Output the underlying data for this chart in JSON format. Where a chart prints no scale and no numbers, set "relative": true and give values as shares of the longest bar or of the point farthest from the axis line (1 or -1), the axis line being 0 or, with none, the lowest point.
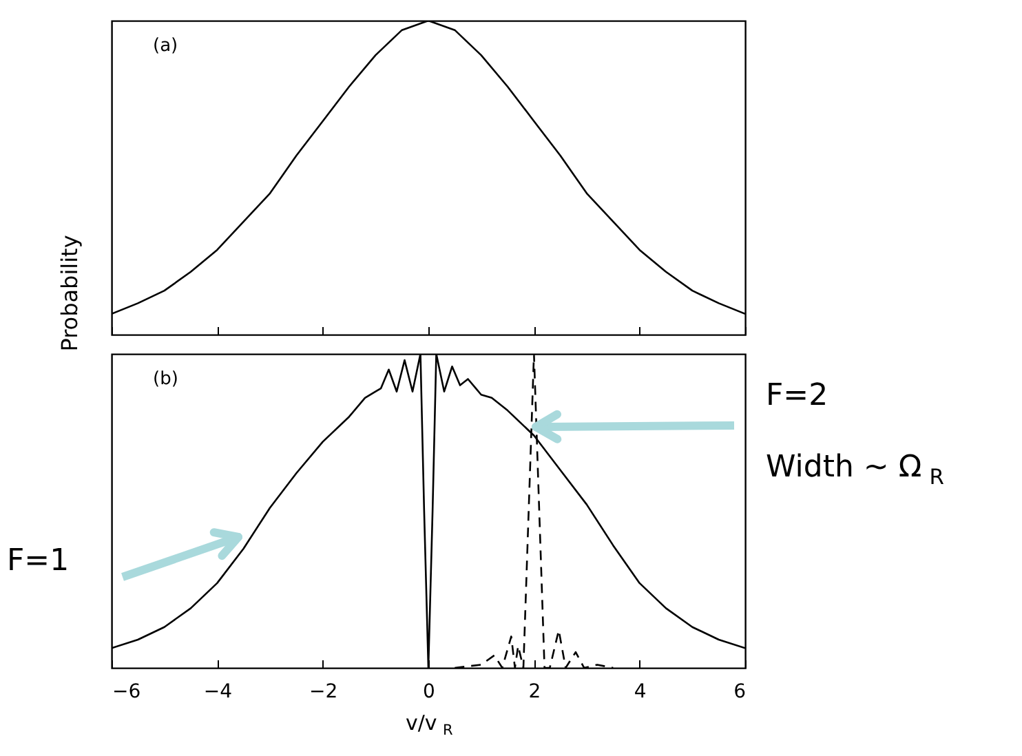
{
  "chart_data": [
    {
      "type": "line",
      "relative": true,
      "ylabel": "Probability",
      "xlim": [
        -6,
        6
      ],
      "xticks": [
        -6,
        -4,
        -2,
        0,
        2,
        4,
        6
      ],
      "tick_labels": false,
      "grid": false,
      "annotations": [
        "(a)"
      ],
      "series": [
        {
          "color": "#000000",
          "line_style": "solid",
          "x": [
            -6,
            -5.5,
            -5,
            -4.5,
            -4,
            -3.5,
            -3,
            -2.5,
            -2,
            -1.5,
            -1,
            -0.5,
            0,
            0.5,
            1,
            1.5,
            2,
            2.5,
            3,
            3.5,
            4,
            4.5,
            5,
            5.5,
            6
          ],
          "values": [
            0.066,
            0.1,
            0.14,
            0.2,
            0.27,
            0.36,
            0.45,
            0.57,
            0.68,
            0.79,
            0.89,
            0.97,
            1.0,
            0.97,
            0.89,
            0.79,
            0.68,
            0.57,
            0.45,
            0.36,
            0.27,
            0.2,
            0.14,
            0.1,
            0.066
          ]
        }
      ]
    },
    {
      "type": "line",
      "relative": true,
      "xlabel": "v/v$_{R}$",
      "xlim": [
        -6,
        6
      ],
      "xticks": [
        -6,
        -4,
        -2,
        0,
        2,
        4,
        6
      ],
      "grid": false,
      "annotations": [
        "(b)",
        "F=1",
        "F=2",
        "Width ~ Ω$_{R}$"
      ],
      "series": [
        {
          "color": "#000000",
          "line_style": "solid",
          "x": [
            -6,
            -5.5,
            -5,
            -4.5,
            -4,
            -3.5,
            -3,
            -2.5,
            -2,
            -1.5,
            -1.2,
            -1,
            -0.9,
            -0.75,
            -0.6,
            -0.45,
            -0.3,
            -0.15,
            -0.08,
            0,
            0.08,
            0.15,
            0.3,
            0.45,
            0.6,
            0.75,
            0.9,
            1,
            1.2,
            1.5,
            2,
            2.5,
            3,
            3.5,
            4,
            4.5,
            5,
            5.5,
            6
          ],
          "values": [
            0.063,
            0.09,
            0.13,
            0.19,
            0.27,
            0.38,
            0.51,
            0.62,
            0.72,
            0.8,
            0.86,
            0.88,
            0.89,
            0.95,
            0.88,
            0.98,
            0.88,
            1.0,
            0.5,
            0,
            0.5,
            1.0,
            0.88,
            0.96,
            0.9,
            0.92,
            0.89,
            0.87,
            0.86,
            0.82,
            0.74,
            0.63,
            0.52,
            0.39,
            0.27,
            0.19,
            0.13,
            0.09,
            0.063
          ]
        },
        {
          "color": "#000000",
          "line_style": "dashed",
          "x": [
            0.5,
            1.0,
            1.25,
            1.4,
            1.57,
            1.64,
            1.7,
            1.8,
            1.9,
            2.0,
            2.1,
            2.2,
            2.3,
            2.47,
            2.6,
            2.79,
            2.95,
            3.2,
            3.5
          ],
          "values": [
            0,
            0.01,
            0.04,
            0,
            0.1,
            0,
            0.07,
            0,
            0.5,
            1.0,
            0.5,
            0,
            0,
            0.12,
            0,
            0.05,
            0,
            0.01,
            0
          ]
        }
      ]
    }
  ]
}
